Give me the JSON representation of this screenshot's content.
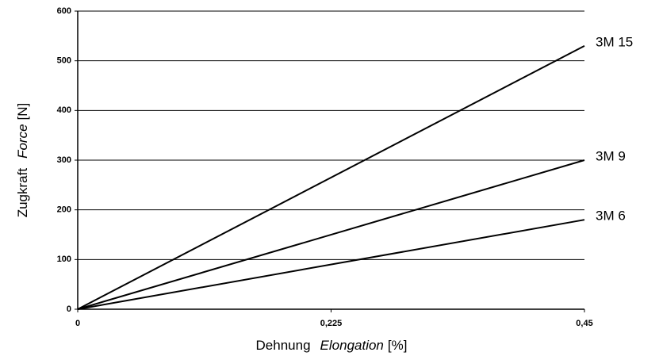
{
  "chart_data": {
    "type": "line",
    "xlabel": [
      "Dehnung",
      "Elongation",
      "[%]"
    ],
    "ylabel": [
      "Zugkraft",
      "Force",
      "[N]"
    ],
    "xlim": [
      0,
      0.45
    ],
    "xticks": [
      0,
      {
        "value": 0.225,
        "label": "0,225"
      },
      {
        "value": 0.45,
        "label": "0,45"
      }
    ],
    "ylim": [
      0,
      600
    ],
    "yticks": [
      0,
      100,
      200,
      300,
      400,
      500,
      600
    ],
    "grid": true,
    "x": [
      0,
      0.45
    ],
    "series": [
      {
        "name": "3M 15",
        "color": "#000000",
        "values": [
          0,
          530
        ]
      },
      {
        "name": "3M 9",
        "color": "#000000",
        "values": [
          0,
          300
        ]
      },
      {
        "name": "3M 6",
        "color": "#000000",
        "values": [
          0,
          180
        ]
      }
    ]
  }
}
